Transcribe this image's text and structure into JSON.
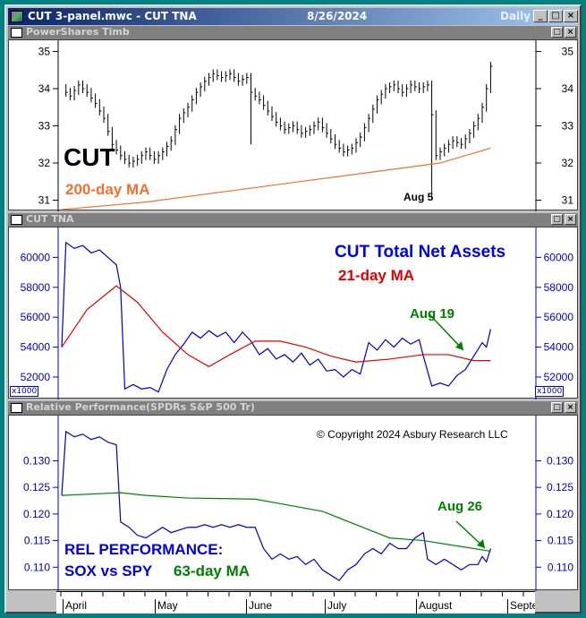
{
  "window": {
    "title": "CUT 3-panel.mwc - CUT TNA",
    "date": "8/26/2024",
    "period": "Daily",
    "minimize": "_",
    "maximize": "□",
    "close": "×"
  },
  "panels": [
    {
      "title": "PowerShares Timb",
      "restore": "□",
      "close": "×",
      "annotations": {
        "symbol": "CUT",
        "ma_label": "200-day MA",
        "event": "Aug 5"
      }
    },
    {
      "title": "CUT TNA",
      "restore": "□",
      "close": "×",
      "annotations": {
        "title": "CUT Total Net Assets",
        "ma_label": "21-day MA",
        "event": "Aug 19"
      },
      "scale_label": "x1000"
    },
    {
      "title": "Relative Performance(SPDRs S&P 500 Tr)",
      "restore": "□",
      "close": "×",
      "annotations": {
        "copyright": "© Copyright 2024 Asbury Research LLC",
        "event": "Aug 26",
        "label1": "REL PERFORMANCE:",
        "label2": "SOX vs SPY",
        "ma_label": "63-day MA"
      }
    }
  ],
  "x_axis": {
    "months": [
      "April",
      "May",
      "June",
      "July",
      "August",
      "Septe"
    ]
  },
  "colors": {
    "price": "#000000",
    "ma200": "#f07030",
    "tna": "#0000c0",
    "ma21": "#e00000",
    "rel": "#0000c0",
    "ma63": "#008000",
    "annotation_green": "#008000"
  },
  "chart_data": [
    {
      "type": "line",
      "name": "CUT price",
      "x_unit": "trading day since Apr 1",
      "ylim": [
        30.7,
        35.3
      ],
      "yticks": [
        "35",
        "34",
        "33",
        "32",
        "31"
      ],
      "series": [
        {
          "name": "CUT",
          "points": [
            [
              0,
              34.0
            ],
            [
              2,
              33.8
            ],
            [
              4,
              34.1
            ],
            [
              6,
              33.9
            ],
            [
              8,
              33.6
            ],
            [
              10,
              33.2
            ],
            [
              12,
              32.5
            ],
            [
              14,
              32.2
            ],
            [
              16,
              32.0
            ],
            [
              18,
              32.1
            ],
            [
              20,
              32.3
            ],
            [
              22,
              32.1
            ],
            [
              24,
              32.3
            ],
            [
              26,
              32.6
            ],
            [
              28,
              33.2
            ],
            [
              30,
              33.5
            ],
            [
              32,
              33.9
            ],
            [
              34,
              34.2
            ],
            [
              36,
              34.4
            ],
            [
              38,
              34.3
            ],
            [
              40,
              34.4
            ],
            [
              42,
              34.2
            ],
            [
              44,
              34.3
            ],
            [
              45,
              33.9
            ],
            [
              47,
              33.7
            ],
            [
              49,
              33.4
            ],
            [
              51,
              33.1
            ],
            [
              53,
              32.9
            ],
            [
              55,
              33.0
            ],
            [
              57,
              32.8
            ],
            [
              59,
              32.9
            ],
            [
              61,
              33.1
            ],
            [
              63,
              32.8
            ],
            [
              65,
              32.5
            ],
            [
              67,
              32.3
            ],
            [
              69,
              32.4
            ],
            [
              71,
              32.7
            ],
            [
              73,
              33.2
            ],
            [
              75,
              33.7
            ],
            [
              77,
              34.0
            ],
            [
              79,
              34.1
            ],
            [
              81,
              33.9
            ],
            [
              83,
              34.1
            ],
            [
              85,
              34.0
            ],
            [
              87,
              34.1
            ],
            [
              88,
              33.3
            ],
            [
              89,
              32.2
            ],
            [
              91,
              32.4
            ],
            [
              93,
              32.6
            ],
            [
              95,
              32.5
            ],
            [
              97,
              32.8
            ],
            [
              99,
              33.2
            ],
            [
              100,
              33.5
            ],
            [
              101,
              34.0
            ],
            [
              102,
              34.6
            ]
          ]
        },
        {
          "name": "200-day MA",
          "points": [
            [
              0,
              30.75
            ],
            [
              20,
              30.95
            ],
            [
              40,
              31.25
            ],
            [
              60,
              31.55
            ],
            [
              80,
              31.85
            ],
            [
              90,
              32.0
            ],
            [
              102,
              32.4
            ]
          ]
        }
      ]
    },
    {
      "type": "line",
      "name": "CUT Total Net Assets",
      "ylim": [
        50500,
        62000
      ],
      "yticks": [
        "60000",
        "58000",
        "56000",
        "54000",
        "52000"
      ],
      "series": [
        {
          "name": "TNA",
          "points": [
            [
              0,
              54000
            ],
            [
              1,
              61000
            ],
            [
              3,
              60600
            ],
            [
              5,
              60800
            ],
            [
              7,
              60300
            ],
            [
              9,
              60500
            ],
            [
              11,
              60000
            ],
            [
              13,
              59500
            ],
            [
              14,
              58000
            ],
            [
              15,
              51200
            ],
            [
              17,
              51500
            ],
            [
              19,
              51200
            ],
            [
              21,
              51300
            ],
            [
              23,
              51000
            ],
            [
              25,
              52500
            ],
            [
              27,
              53500
            ],
            [
              29,
              54200
            ],
            [
              31,
              55000
            ],
            [
              33,
              54600
            ],
            [
              35,
              55100
            ],
            [
              37,
              54700
            ],
            [
              39,
              55000
            ],
            [
              41,
              54300
            ],
            [
              43,
              55000
            ],
            [
              45,
              54400
            ],
            [
              47,
              53500
            ],
            [
              49,
              53900
            ],
            [
              51,
              53200
            ],
            [
              53,
              53500
            ],
            [
              55,
              53000
            ],
            [
              57,
              53600
            ],
            [
              59,
              52800
            ],
            [
              61,
              53200
            ],
            [
              63,
              52400
            ],
            [
              65,
              52500
            ],
            [
              67,
              52000
            ],
            [
              69,
              52500
            ],
            [
              71,
              52200
            ],
            [
              73,
              54300
            ],
            [
              75,
              53800
            ],
            [
              77,
              54500
            ],
            [
              79,
              54000
            ],
            [
              81,
              54600
            ],
            [
              83,
              54200
            ],
            [
              85,
              54500
            ],
            [
              86,
              53400
            ],
            [
              88,
              51400
            ],
            [
              90,
              51600
            ],
            [
              92,
              51400
            ],
            [
              94,
              52100
            ],
            [
              96,
              52500
            ],
            [
              98,
              53400
            ],
            [
              100,
              54300
            ],
            [
              101,
              54000
            ],
            [
              102,
              55200
            ]
          ]
        },
        {
          "name": "21-day MA",
          "points": [
            [
              0,
              54000
            ],
            [
              6,
              56500
            ],
            [
              13,
              58100
            ],
            [
              18,
              57000
            ],
            [
              24,
              55000
            ],
            [
              30,
              53500
            ],
            [
              35,
              52700
            ],
            [
              40,
              53500
            ],
            [
              46,
              54400
            ],
            [
              52,
              54400
            ],
            [
              58,
              54000
            ],
            [
              64,
              53400
            ],
            [
              70,
              53000
            ],
            [
              78,
              53200
            ],
            [
              86,
              53500
            ],
            [
              92,
              53500
            ],
            [
              98,
              53100
            ],
            [
              102,
              53100
            ]
          ]
        }
      ]
    },
    {
      "type": "line",
      "name": "Relative Performance SOX vs SPY",
      "ylim": [
        0.1055,
        0.1385
      ],
      "yticks": [
        "0.130",
        "0.125",
        "0.120",
        "0.115",
        "0.110"
      ],
      "series": [
        {
          "name": "Rel Performance",
          "points": [
            [
              0,
              0.1235
            ],
            [
              1,
              0.1355
            ],
            [
              3,
              0.1345
            ],
            [
              5,
              0.135
            ],
            [
              7,
              0.134
            ],
            [
              9,
              0.1345
            ],
            [
              11,
              0.1335
            ],
            [
              13,
              0.133
            ],
            [
              14,
              0.1185
            ],
            [
              16,
              0.1175
            ],
            [
              18,
              0.116
            ],
            [
              20,
              0.1155
            ],
            [
              22,
              0.1165
            ],
            [
              24,
              0.1175
            ],
            [
              26,
              0.1165
            ],
            [
              28,
              0.117
            ],
            [
              30,
              0.1175
            ],
            [
              32,
              0.1175
            ],
            [
              34,
              0.118
            ],
            [
              36,
              0.1175
            ],
            [
              38,
              0.118
            ],
            [
              40,
              0.1175
            ],
            [
              42,
              0.118
            ],
            [
              44,
              0.1175
            ],
            [
              46,
              0.1175
            ],
            [
              48,
              0.1135
            ],
            [
              50,
              0.1115
            ],
            [
              52,
              0.1125
            ],
            [
              54,
              0.1115
            ],
            [
              56,
              0.112
            ],
            [
              58,
              0.1105
            ],
            [
              60,
              0.1115
            ],
            [
              62,
              0.1095
            ],
            [
              64,
              0.1085
            ],
            [
              66,
              0.1075
            ],
            [
              68,
              0.1095
            ],
            [
              70,
              0.1105
            ],
            [
              72,
              0.1125
            ],
            [
              74,
              0.1135
            ],
            [
              76,
              0.1125
            ],
            [
              78,
              0.1145
            ],
            [
              80,
              0.1135
            ],
            [
              82,
              0.1135
            ],
            [
              84,
              0.1155
            ],
            [
              86,
              0.1165
            ],
            [
              87,
              0.1115
            ],
            [
              89,
              0.1105
            ],
            [
              91,
              0.1115
            ],
            [
              93,
              0.1105
            ],
            [
              95,
              0.1095
            ],
            [
              97,
              0.1105
            ],
            [
              99,
              0.1105
            ],
            [
              100,
              0.112
            ],
            [
              101,
              0.111
            ],
            [
              102,
              0.1135
            ]
          ]
        },
        {
          "name": "63-day MA",
          "points": [
            [
              0,
              0.1235
            ],
            [
              14,
              0.124
            ],
            [
              20,
              0.1235
            ],
            [
              30,
              0.123
            ],
            [
              46,
              0.1228
            ],
            [
              55,
              0.1215
            ],
            [
              62,
              0.1205
            ],
            [
              70,
              0.118
            ],
            [
              78,
              0.1155
            ],
            [
              86,
              0.115
            ],
            [
              94,
              0.114
            ],
            [
              102,
              0.113
            ]
          ]
        }
      ]
    }
  ]
}
